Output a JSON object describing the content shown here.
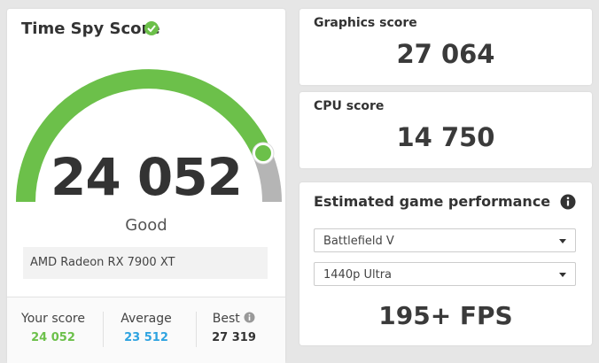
{
  "score_card": {
    "title": "Time Spy Score",
    "score": "24 052",
    "rating": "Good",
    "gpu": "AMD Radeon RX 7900 XT",
    "stats": [
      {
        "label": "Your score",
        "value": "24 052"
      },
      {
        "label": "Average",
        "value": "23 512"
      },
      {
        "label": "Best",
        "value": "27 319"
      }
    ]
  },
  "graphics": {
    "label": "Graphics score",
    "value": "27 064"
  },
  "cpu": {
    "label": "CPU score",
    "value": "14 750"
  },
  "game_perf": {
    "title": "Estimated game performance",
    "game": "Battlefield V",
    "setting": "1440p Ultra",
    "fps": "195+ FPS"
  }
}
